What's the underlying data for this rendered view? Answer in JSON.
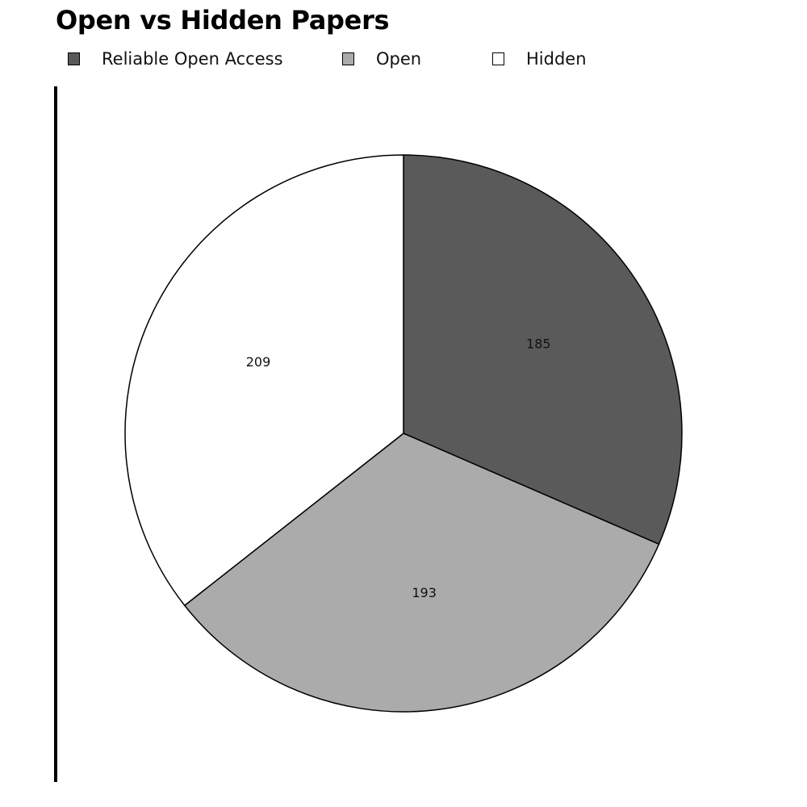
{
  "chart_data": {
    "type": "pie",
    "title": "Open vs Hidden Papers",
    "legend_position": "top",
    "series": [
      {
        "name": "Reliable Open Access",
        "value": 185,
        "color": "#5a5a5a"
      },
      {
        "name": "Open",
        "value": 193,
        "color": "#ababab"
      },
      {
        "name": "Hidden",
        "value": 209,
        "color": "#ffffff"
      }
    ]
  }
}
